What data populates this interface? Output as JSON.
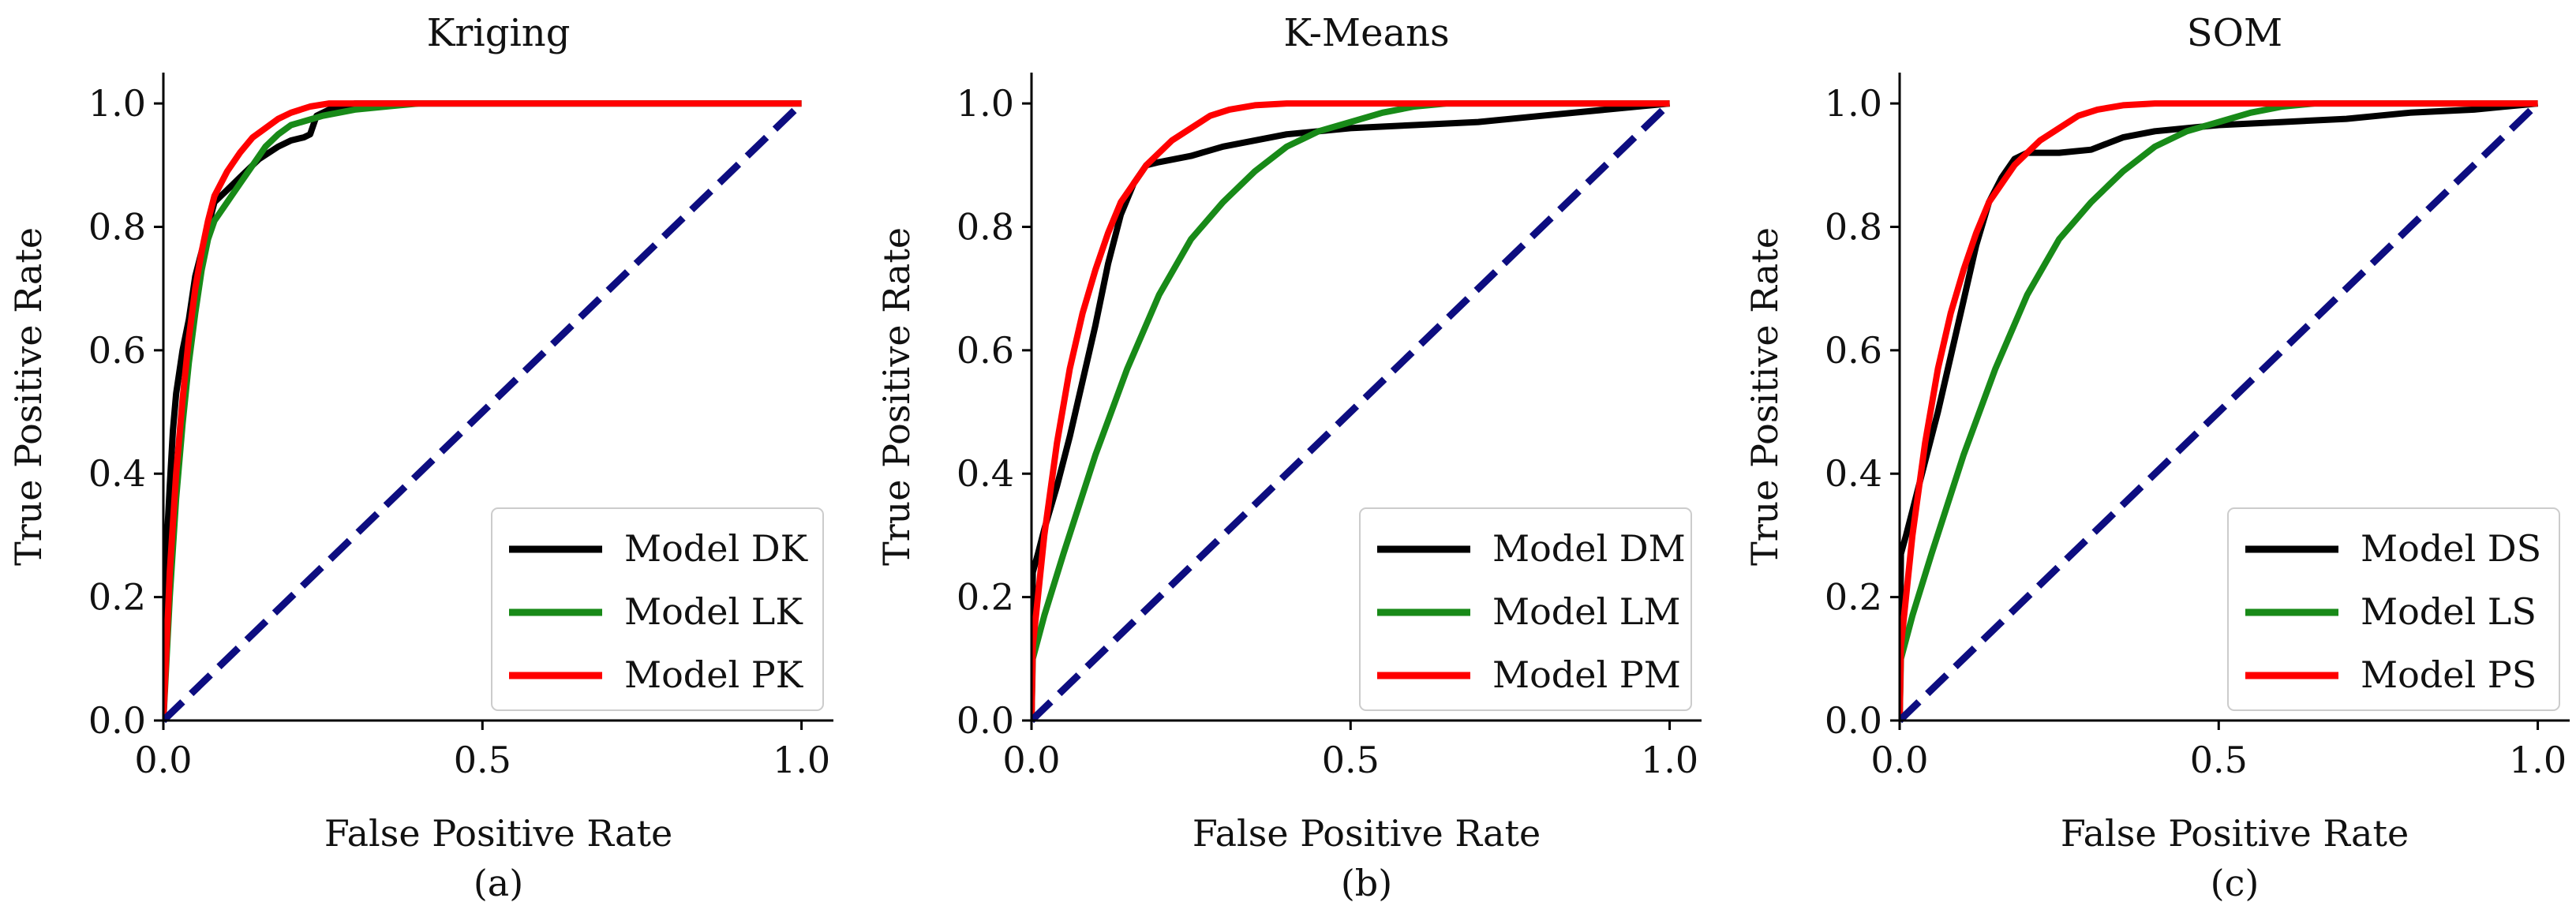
{
  "chart_data": [
    {
      "type": "line",
      "title": "Kriging",
      "caption": "(a)",
      "xlabel": "False Positive Rate",
      "ylabel": "True Positive Rate",
      "xlim": [
        0,
        1.05
      ],
      "ylim": [
        0,
        1.05
      ],
      "xticks": [
        0.0,
        0.5,
        1.0
      ],
      "xtick_labels": [
        "0.0",
        "0.5",
        "1.0"
      ],
      "yticks": [
        0.0,
        0.2,
        0.4,
        0.6,
        0.8,
        1.0
      ],
      "ytick_labels": [
        "0.0",
        "0.2",
        "0.4",
        "0.6",
        "0.8",
        "1.0"
      ],
      "legend_position": "bottom-right",
      "grid": false,
      "series": [
        {
          "name": "Model DK",
          "color": "#000000",
          "style": "solid",
          "x": [
            0,
            0.005,
            0.01,
            0.015,
            0.02,
            0.03,
            0.04,
            0.05,
            0.06,
            0.07,
            0.08,
            0.1,
            0.12,
            0.15,
            0.18,
            0.2,
            0.22,
            0.23,
            0.24,
            0.26,
            0.3,
            0.4,
            0.6,
            0.8,
            1.0
          ],
          "y": [
            0,
            0.28,
            0.38,
            0.47,
            0.53,
            0.6,
            0.65,
            0.72,
            0.76,
            0.8,
            0.84,
            0.86,
            0.88,
            0.91,
            0.93,
            0.94,
            0.945,
            0.95,
            0.98,
            0.99,
            1.0,
            1.0,
            1.0,
            1.0,
            1.0
          ]
        },
        {
          "name": "Model LK",
          "color": "#188a18",
          "style": "solid",
          "x": [
            0,
            0.01,
            0.02,
            0.03,
            0.04,
            0.05,
            0.06,
            0.07,
            0.08,
            0.1,
            0.12,
            0.14,
            0.16,
            0.18,
            0.2,
            0.25,
            0.3,
            0.4,
            0.6,
            0.8,
            1.0
          ],
          "y": [
            0,
            0.2,
            0.36,
            0.48,
            0.58,
            0.66,
            0.73,
            0.78,
            0.81,
            0.84,
            0.87,
            0.9,
            0.93,
            0.95,
            0.965,
            0.98,
            0.99,
            1.0,
            1.0,
            1.0,
            1.0
          ]
        },
        {
          "name": "Model PK",
          "color": "#ff0000",
          "style": "solid",
          "x": [
            0,
            0.01,
            0.02,
            0.03,
            0.04,
            0.05,
            0.06,
            0.07,
            0.08,
            0.1,
            0.12,
            0.14,
            0.16,
            0.18,
            0.2,
            0.23,
            0.26,
            0.3,
            0.4,
            0.6,
            0.8,
            1.0
          ],
          "y": [
            0,
            0.24,
            0.4,
            0.52,
            0.62,
            0.7,
            0.76,
            0.81,
            0.85,
            0.89,
            0.92,
            0.945,
            0.96,
            0.975,
            0.985,
            0.995,
            1.0,
            1.0,
            1.0,
            1.0,
            1.0,
            1.0
          ]
        },
        {
          "name": "",
          "color": "#0d0d80",
          "style": "dashed",
          "x": [
            0,
            1.0
          ],
          "y": [
            0,
            1.0
          ]
        }
      ]
    },
    {
      "type": "line",
      "title": "K-Means",
      "caption": "(b)",
      "xlabel": "False Positive Rate",
      "ylabel": "True Positive Rate",
      "xlim": [
        0,
        1.05
      ],
      "ylim": [
        0,
        1.05
      ],
      "xticks": [
        0.0,
        0.5,
        1.0
      ],
      "xtick_labels": [
        "0.0",
        "0.5",
        "1.0"
      ],
      "yticks": [
        0.0,
        0.2,
        0.4,
        0.6,
        0.8,
        1.0
      ],
      "ytick_labels": [
        "0.0",
        "0.2",
        "0.4",
        "0.6",
        "0.8",
        "1.0"
      ],
      "legend_position": "bottom-right",
      "grid": false,
      "series": [
        {
          "name": "Model DM",
          "color": "#000000",
          "style": "solid",
          "x": [
            0,
            0.002,
            0.01,
            0.02,
            0.04,
            0.06,
            0.08,
            0.1,
            0.12,
            0.14,
            0.16,
            0.18,
            0.2,
            0.25,
            0.3,
            0.4,
            0.5,
            0.6,
            0.7,
            0.8,
            0.9,
            1.0
          ],
          "y": [
            0,
            0.24,
            0.27,
            0.31,
            0.38,
            0.46,
            0.55,
            0.64,
            0.74,
            0.82,
            0.87,
            0.9,
            0.905,
            0.915,
            0.93,
            0.95,
            0.96,
            0.965,
            0.97,
            0.98,
            0.99,
            1.0
          ]
        },
        {
          "name": "Model LM",
          "color": "#188a18",
          "style": "solid",
          "x": [
            0,
            0.002,
            0.02,
            0.05,
            0.1,
            0.15,
            0.2,
            0.25,
            0.3,
            0.35,
            0.4,
            0.45,
            0.5,
            0.55,
            0.6,
            0.65,
            0.7,
            0.8,
            1.0
          ],
          "y": [
            0,
            0.1,
            0.17,
            0.27,
            0.43,
            0.57,
            0.69,
            0.78,
            0.84,
            0.89,
            0.93,
            0.955,
            0.97,
            0.985,
            0.995,
            1.0,
            1.0,
            1.0,
            1.0
          ]
        },
        {
          "name": "Model PM",
          "color": "#ff0000",
          "style": "solid",
          "x": [
            0,
            0.002,
            0.02,
            0.04,
            0.06,
            0.08,
            0.1,
            0.12,
            0.14,
            0.16,
            0.18,
            0.2,
            0.22,
            0.25,
            0.28,
            0.31,
            0.35,
            0.4,
            0.5,
            0.7,
            1.0
          ],
          "y": [
            0,
            0.12,
            0.3,
            0.45,
            0.57,
            0.66,
            0.73,
            0.79,
            0.84,
            0.87,
            0.9,
            0.92,
            0.94,
            0.96,
            0.98,
            0.99,
            0.997,
            1.0,
            1.0,
            1.0,
            1.0
          ]
        },
        {
          "name": "",
          "color": "#0d0d80",
          "style": "dashed",
          "x": [
            0,
            1.0
          ],
          "y": [
            0,
            1.0
          ]
        }
      ]
    },
    {
      "type": "line",
      "title": "SOM",
      "caption": "(c)",
      "xlabel": "False Positive Rate",
      "ylabel": "True Positive Rate",
      "xlim": [
        0,
        1.05
      ],
      "ylim": [
        0,
        1.05
      ],
      "xticks": [
        0.0,
        0.5,
        1.0
      ],
      "xtick_labels": [
        "0.0",
        "0.5",
        "1.0"
      ],
      "yticks": [
        0.0,
        0.2,
        0.4,
        0.6,
        0.8,
        1.0
      ],
      "ytick_labels": [
        "0.0",
        "0.2",
        "0.4",
        "0.6",
        "0.8",
        "1.0"
      ],
      "legend_position": "bottom-right",
      "grid": false,
      "series": [
        {
          "name": "Model DS",
          "color": "#000000",
          "style": "solid",
          "x": [
            0,
            0.002,
            0.01,
            0.02,
            0.04,
            0.06,
            0.08,
            0.1,
            0.12,
            0.14,
            0.16,
            0.18,
            0.2,
            0.25,
            0.3,
            0.35,
            0.4,
            0.5,
            0.6,
            0.7,
            0.75,
            0.8,
            0.9,
            1.0
          ],
          "y": [
            0,
            0.27,
            0.3,
            0.34,
            0.42,
            0.5,
            0.59,
            0.68,
            0.77,
            0.84,
            0.88,
            0.91,
            0.92,
            0.92,
            0.925,
            0.945,
            0.955,
            0.965,
            0.97,
            0.975,
            0.98,
            0.985,
            0.99,
            1.0
          ]
        },
        {
          "name": "Model LS",
          "color": "#188a18",
          "style": "solid",
          "x": [
            0,
            0.002,
            0.02,
            0.05,
            0.1,
            0.15,
            0.2,
            0.25,
            0.3,
            0.35,
            0.4,
            0.45,
            0.5,
            0.55,
            0.6,
            0.65,
            0.7,
            0.8,
            1.0
          ],
          "y": [
            0,
            0.1,
            0.17,
            0.27,
            0.43,
            0.57,
            0.69,
            0.78,
            0.84,
            0.89,
            0.93,
            0.955,
            0.97,
            0.985,
            0.995,
            1.0,
            1.0,
            1.0,
            1.0
          ]
        },
        {
          "name": "Model PS",
          "color": "#ff0000",
          "style": "solid",
          "x": [
            0,
            0.002,
            0.02,
            0.04,
            0.06,
            0.08,
            0.1,
            0.12,
            0.14,
            0.16,
            0.18,
            0.2,
            0.22,
            0.25,
            0.28,
            0.31,
            0.35,
            0.4,
            0.5,
            0.7,
            1.0
          ],
          "y": [
            0,
            0.12,
            0.3,
            0.45,
            0.57,
            0.66,
            0.73,
            0.79,
            0.84,
            0.87,
            0.9,
            0.92,
            0.94,
            0.96,
            0.98,
            0.99,
            0.997,
            1.0,
            1.0,
            1.0,
            1.0
          ]
        },
        {
          "name": "",
          "color": "#0d0d80",
          "style": "dashed",
          "x": [
            0,
            1.0
          ],
          "y": [
            0,
            1.0
          ]
        }
      ]
    }
  ]
}
